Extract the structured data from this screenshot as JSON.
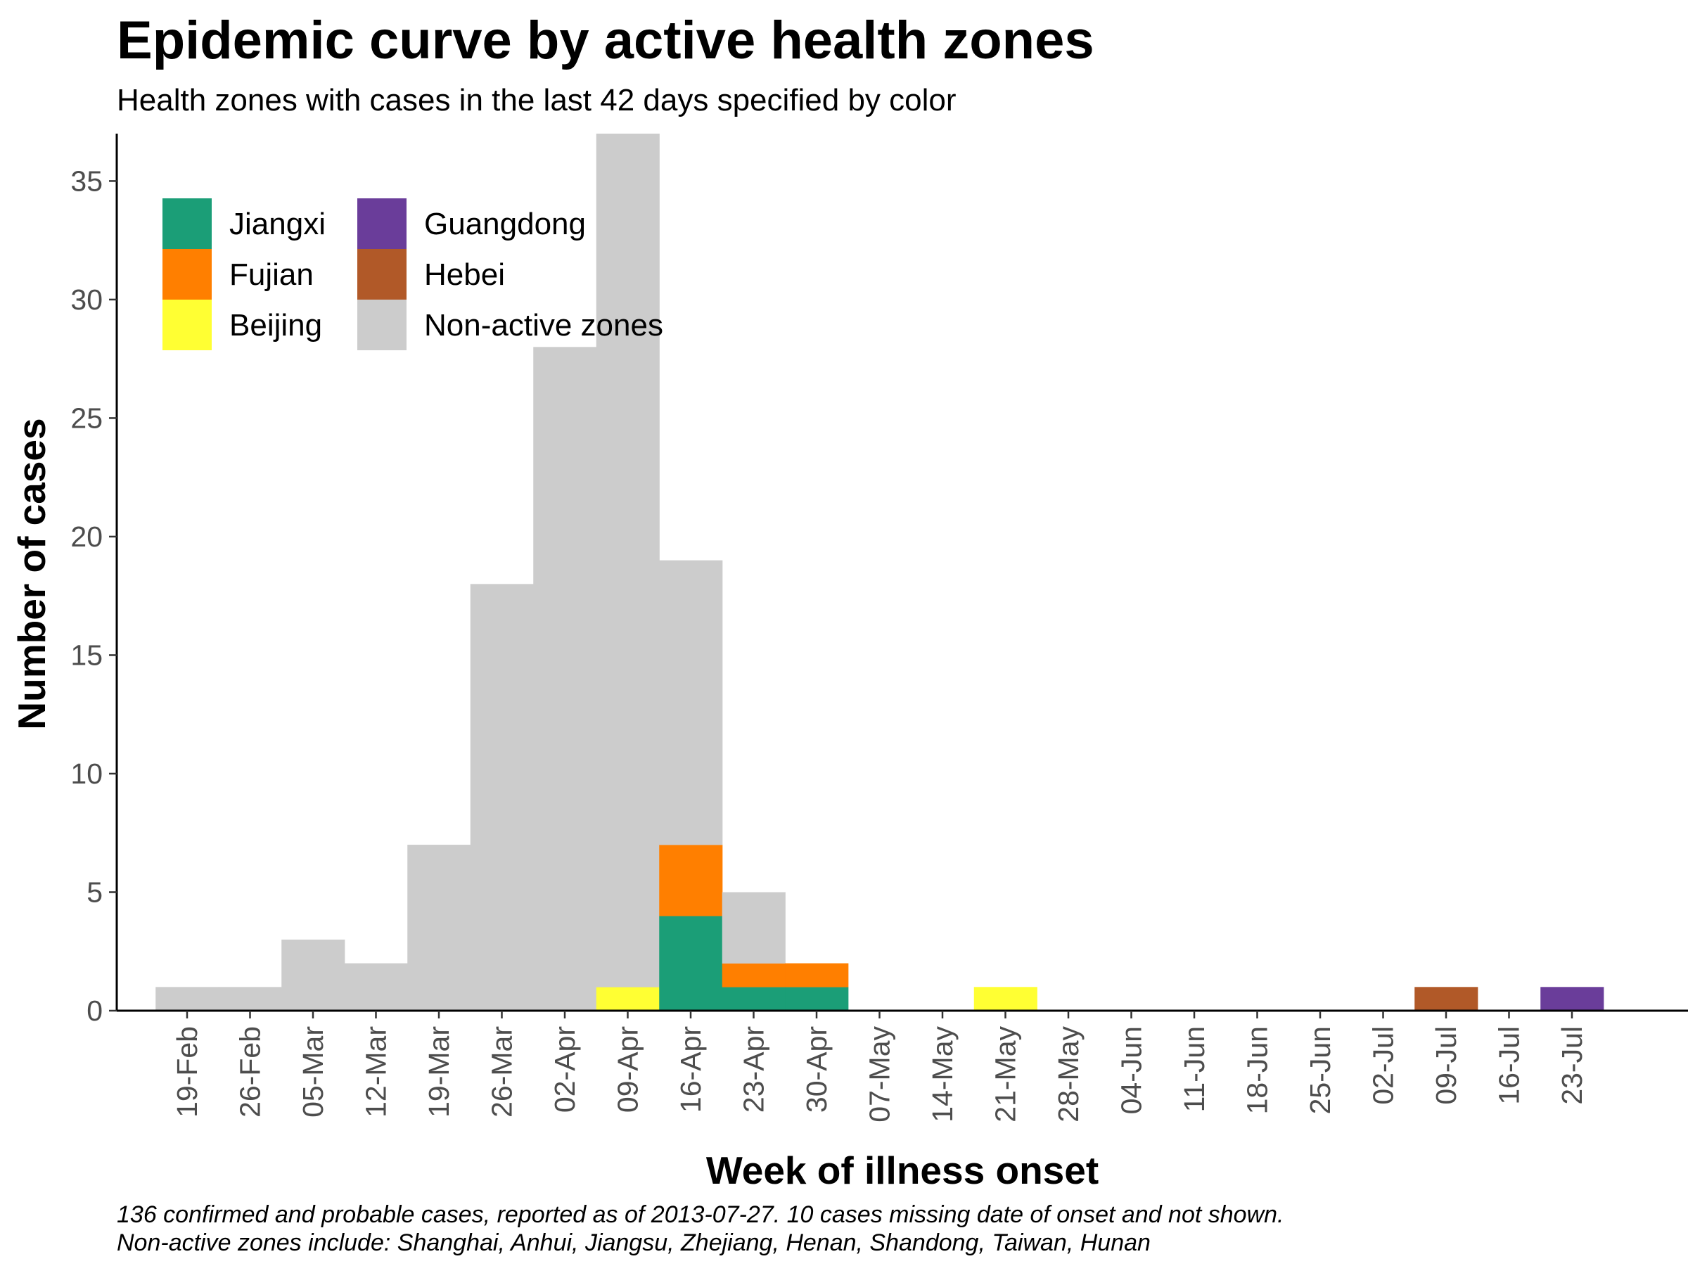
{
  "title": "Epidemic curve by active health zones",
  "subtitle": "Health zones with cases in the last 42 days specified by color",
  "caption": [
    "136 confirmed and probable cases, reported as of 2013-07-27. 10 cases missing date of onset and not shown.",
    "Non-active zones include: Shanghai, Anhui, Jiangsu, Zhejiang, Henan, Shandong, Taiwan, Hunan"
  ],
  "chart_data": {
    "type": "bar",
    "stacked": true,
    "xlabel": "Week of illness onset",
    "ylabel": "Number of cases",
    "ylim": [
      0,
      37
    ],
    "yticks": [
      0,
      5,
      10,
      15,
      20,
      25,
      30,
      35
    ],
    "categories": [
      "19-Feb",
      "26-Feb",
      "05-Mar",
      "12-Mar",
      "19-Mar",
      "26-Mar",
      "02-Apr",
      "09-Apr",
      "16-Apr",
      "23-Apr",
      "30-Apr",
      "07-May",
      "14-May",
      "21-May",
      "28-May",
      "04-Jun",
      "11-Jun",
      "18-Jun",
      "25-Jun",
      "02-Jul",
      "09-Jul",
      "16-Jul",
      "23-Jul"
    ],
    "series": [
      {
        "name": "Jiangxi",
        "color": "#1b9e77",
        "values": [
          0,
          0,
          0,
          0,
          0,
          0,
          0,
          0,
          4,
          1,
          1,
          0,
          0,
          0,
          0,
          0,
          0,
          0,
          0,
          0,
          0,
          0,
          0
        ]
      },
      {
        "name": "Fujian",
        "color": "#ff7f00",
        "values": [
          0,
          0,
          0,
          0,
          0,
          0,
          0,
          0,
          3,
          1,
          1,
          0,
          0,
          0,
          0,
          0,
          0,
          0,
          0,
          0,
          0,
          0,
          0
        ]
      },
      {
        "name": "Beijing",
        "color": "#ffff33",
        "values": [
          0,
          0,
          0,
          0,
          0,
          0,
          0,
          1,
          0,
          0,
          0,
          0,
          0,
          1,
          0,
          0,
          0,
          0,
          0,
          0,
          0,
          0,
          0
        ]
      },
      {
        "name": "Guangdong",
        "color": "#6a3d9a",
        "values": [
          0,
          0,
          0,
          0,
          0,
          0,
          0,
          0,
          0,
          0,
          0,
          0,
          0,
          0,
          0,
          0,
          0,
          0,
          0,
          0,
          0,
          0,
          1
        ]
      },
      {
        "name": "Hebei",
        "color": "#b15928",
        "values": [
          0,
          0,
          0,
          0,
          0,
          0,
          0,
          0,
          0,
          0,
          0,
          0,
          0,
          0,
          0,
          0,
          0,
          0,
          0,
          0,
          1,
          0,
          0
        ]
      },
      {
        "name": "Non-active zones",
        "color": "#cccccc",
        "values": [
          1,
          1,
          3,
          2,
          7,
          18,
          28,
          36,
          12,
          3,
          0,
          0,
          0,
          0,
          0,
          0,
          0,
          0,
          0,
          0,
          0,
          0,
          0
        ]
      }
    ],
    "legend_position": "top-left",
    "grid": false
  }
}
